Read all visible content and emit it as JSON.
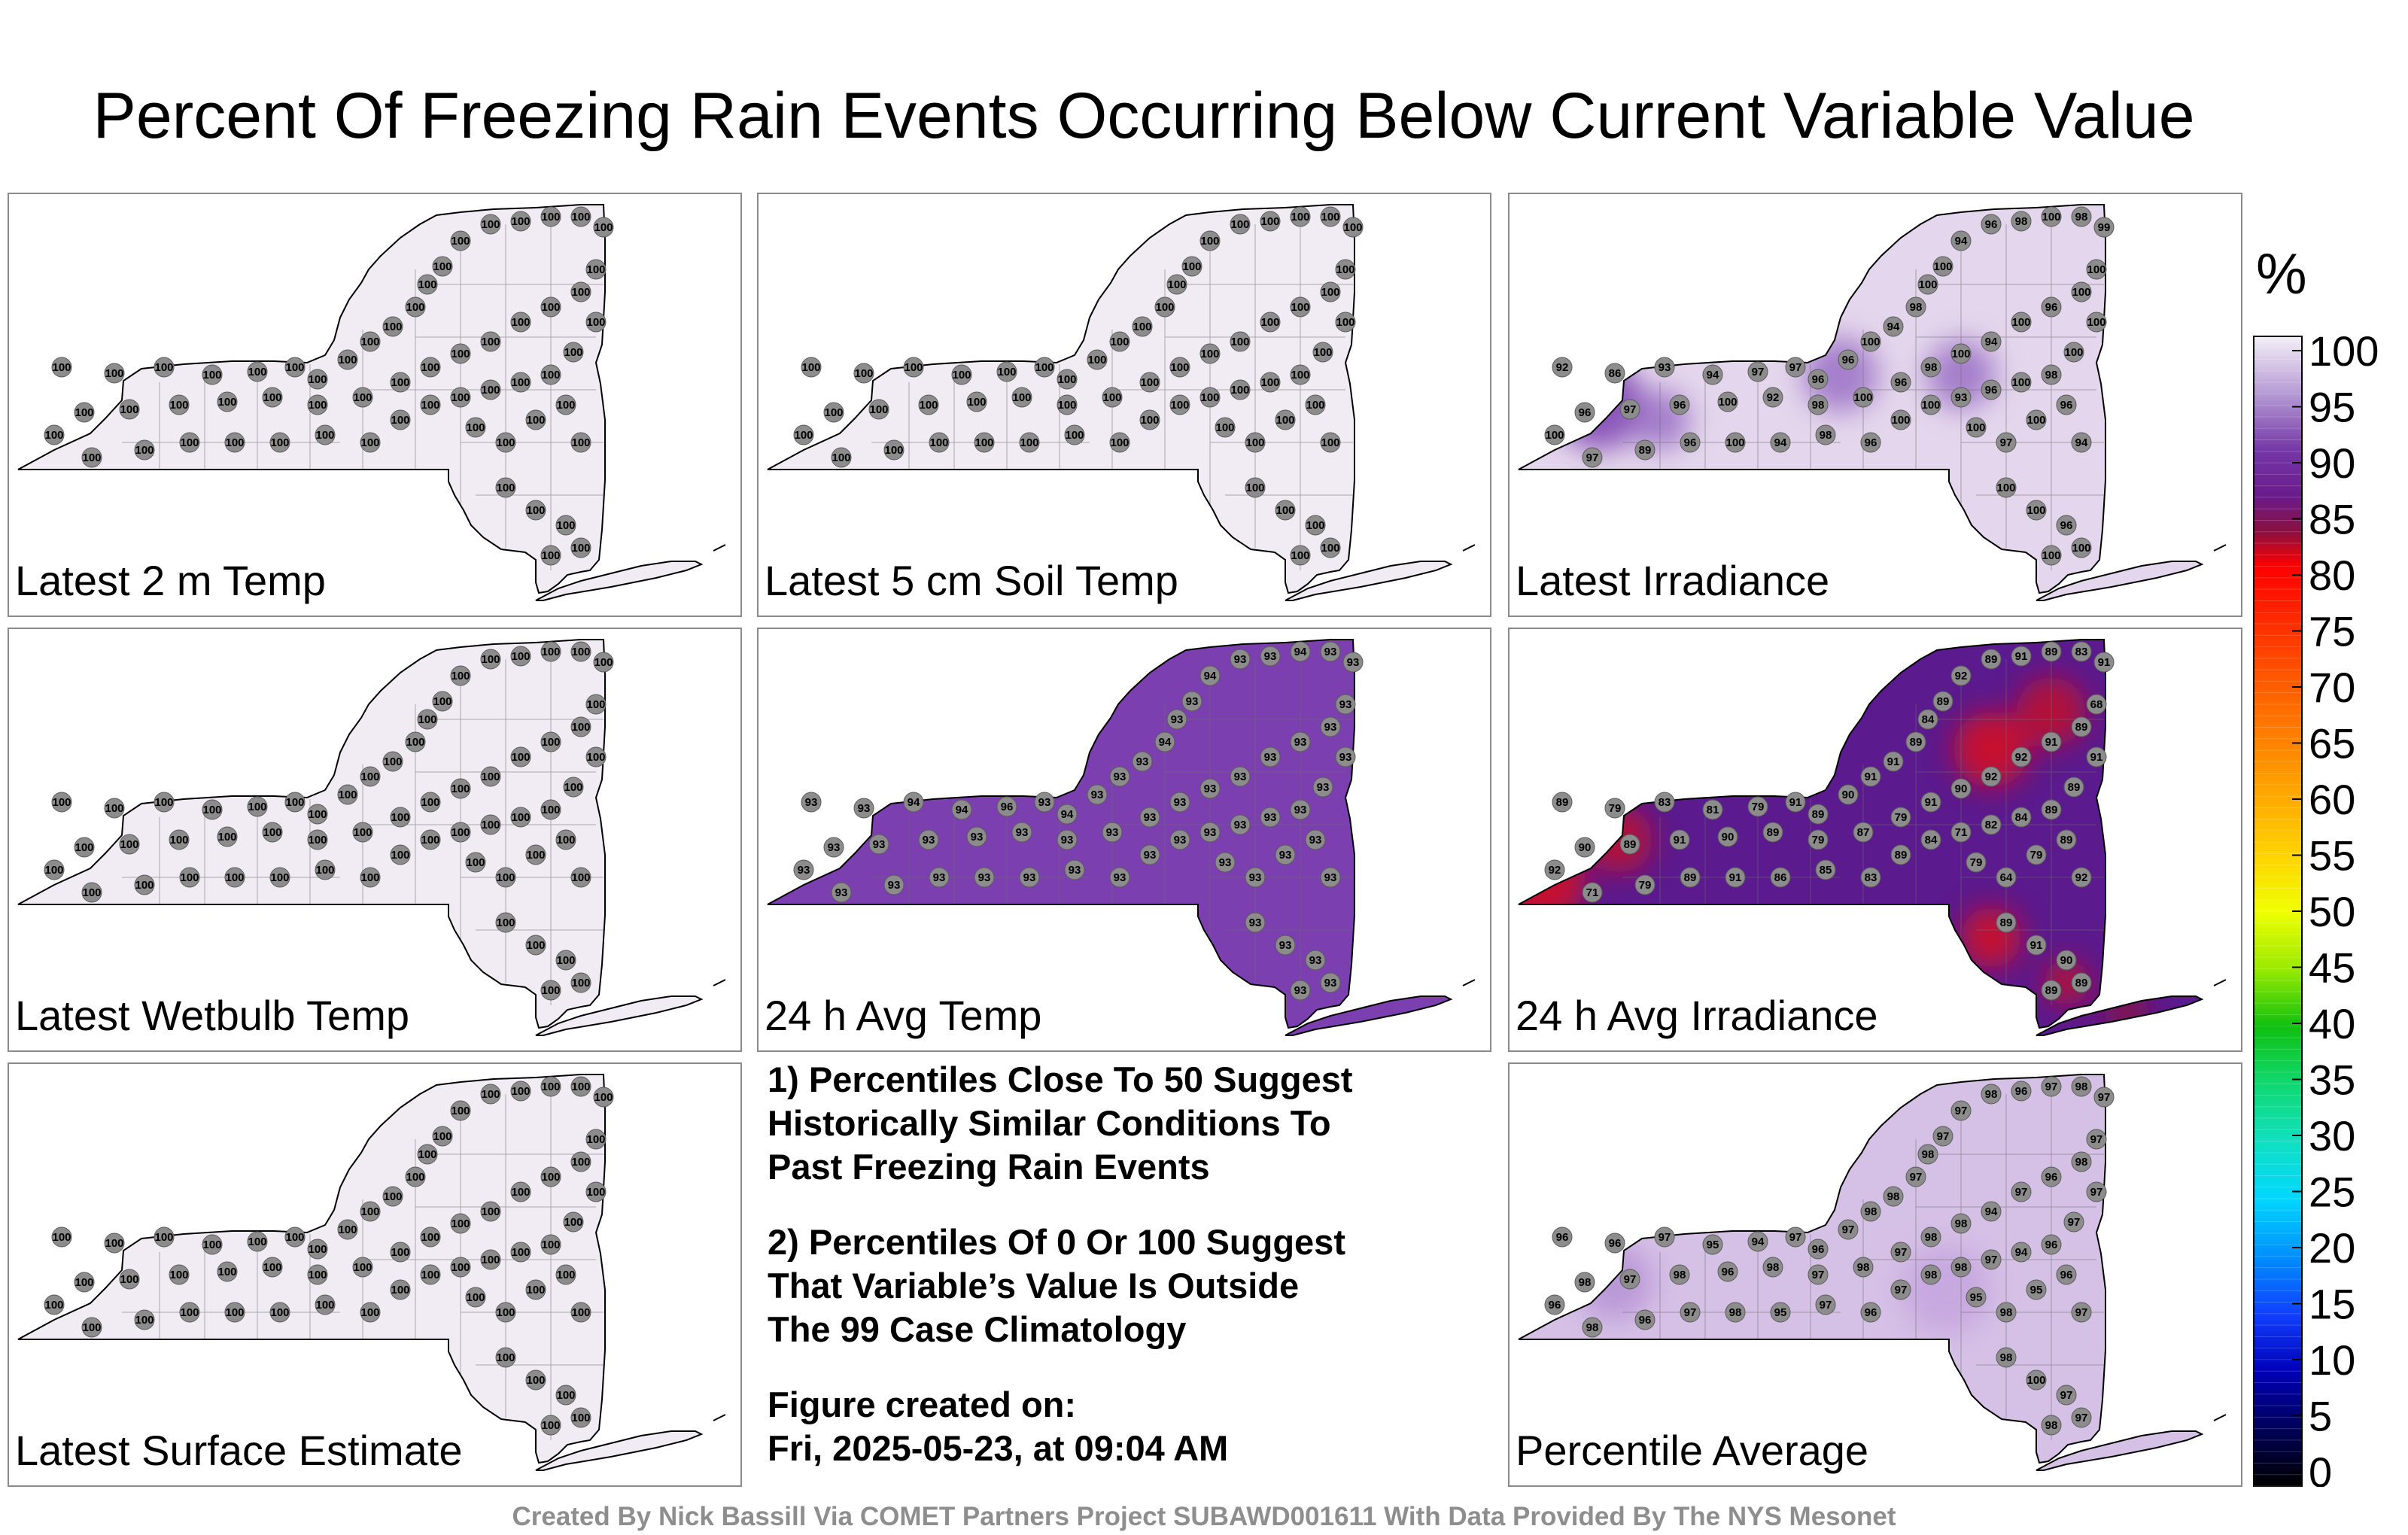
{
  "title": "Percent Of Freezing Rain Events Occurring Below Current Variable Value",
  "colors": {
    "land_white": "#f1ecf4",
    "land_light": "#e4d6ec",
    "land_mid": "#c7a9dc",
    "land_purple": "#7b3fb0",
    "land_deep": "#5b1a8e",
    "hot_red": "#d9121c",
    "station_fill": "#8c8c8c",
    "panel_border": "#8a8a8a",
    "footer_gray": "#8e8e8e"
  },
  "panels": [
    {
      "id": "latest-2m-temp",
      "label": "Latest 2 m Temp",
      "fill": "#f1ecf4",
      "stations": [
        "100",
        "100",
        "100",
        "100",
        "100",
        "100",
        "100",
        "100",
        "100",
        "100",
        "100",
        "100",
        "100",
        "100",
        "100",
        "100",
        "100",
        "100",
        "100",
        "100",
        "100",
        "100",
        "100",
        "100",
        "100",
        "100",
        "100",
        "100",
        "100",
        "100",
        "100",
        "100",
        "100",
        "100",
        "100",
        "100",
        "100",
        "100",
        "100",
        "100",
        "100",
        "100",
        "100",
        "100",
        "100",
        "100",
        "100",
        "100",
        "100",
        "100",
        "100",
        "100",
        "100",
        "100",
        "100",
        "100",
        "100",
        "100",
        "100",
        "100"
      ]
    },
    {
      "id": "latest-5cm-soil-temp",
      "label": "Latest 5 cm Soil Temp",
      "fill": "#f1ecf4",
      "stations": [
        "100",
        "100",
        "100",
        "100",
        "100",
        "100",
        "100",
        "100",
        "100",
        "100",
        "100",
        "100",
        "100",
        "100",
        "100",
        "100",
        "100",
        "100",
        "100",
        "100",
        "100",
        "100",
        "100",
        "100",
        "100",
        "100",
        "100",
        "100",
        "100",
        "100",
        "100",
        "100",
        "100",
        "100",
        "100",
        "100",
        "100",
        "100",
        "100",
        "100",
        "100",
        "100",
        "100",
        "100",
        "100",
        "100",
        "100",
        "100",
        "100",
        "100",
        "100",
        "100",
        "100",
        "100",
        "100",
        "100",
        "100",
        "100",
        "100",
        "100"
      ]
    },
    {
      "id": "latest-irradiance",
      "label": "Latest Irradiance",
      "fill": "#e4d6ec",
      "stations": [
        "92",
        "86",
        "93",
        "94",
        "97",
        "97",
        "96",
        "96",
        "100",
        "94",
        "98",
        "100",
        "100",
        "94",
        "96",
        "98",
        "100",
        "98",
        "99",
        "96",
        "100",
        "97",
        "96",
        "100",
        "92",
        "98",
        "100",
        "96",
        "98",
        "100",
        "94",
        "100",
        "96",
        "100",
        "100",
        "97",
        "89",
        "96",
        "100",
        "94",
        "98",
        "96",
        "100",
        "100",
        "93",
        "96",
        "100",
        "98",
        "100",
        "100",
        "100",
        "97",
        "100",
        "96",
        "94",
        "100",
        "100",
        "96",
        "100",
        "100"
      ]
    },
    {
      "id": "latest-wetbulb-temp",
      "label": "Latest Wetbulb Temp",
      "fill": "#f1ecf4",
      "stations": [
        "100",
        "100",
        "100",
        "100",
        "100",
        "100",
        "100",
        "100",
        "100",
        "100",
        "100",
        "100",
        "100",
        "100",
        "100",
        "100",
        "100",
        "100",
        "100",
        "100",
        "100",
        "100",
        "100",
        "100",
        "100",
        "100",
        "100",
        "100",
        "100",
        "100",
        "100",
        "100",
        "100",
        "100",
        "100",
        "100",
        "100",
        "100",
        "100",
        "100",
        "100",
        "100",
        "100",
        "100",
        "100",
        "100",
        "100",
        "100",
        "100",
        "100",
        "100",
        "100",
        "100",
        "100",
        "100",
        "100",
        "100",
        "100",
        "100",
        "100"
      ]
    },
    {
      "id": "24h-avg-temp",
      "label": "24 h Avg Temp",
      "fill": "#7b3fb0",
      "stations": [
        "93",
        "93",
        "94",
        "94",
        "96",
        "93",
        "94",
        "93",
        "93",
        "93",
        "94",
        "93",
        "93",
        "94",
        "93",
        "93",
        "94",
        "93",
        "93",
        "93",
        "93",
        "93",
        "93",
        "93",
        "93",
        "93",
        "93",
        "93",
        "93",
        "93",
        "93",
        "93",
        "93",
        "93",
        "93",
        "93",
        "93",
        "93",
        "93",
        "93",
        "93",
        "93",
        "93",
        "93",
        "93",
        "93",
        "93",
        "93",
        "93",
        "93",
        "93",
        "93",
        "93",
        "93",
        "93",
        "93",
        "93",
        "93",
        "93",
        "93"
      ]
    },
    {
      "id": "24h-avg-irradiance",
      "label": "24 h Avg Irradiance",
      "fill": "#5b1a8e",
      "stations": [
        "89",
        "79",
        "83",
        "81",
        "79",
        "91",
        "89",
        "90",
        "91",
        "91",
        "89",
        "84",
        "89",
        "92",
        "89",
        "91",
        "89",
        "83",
        "91",
        "90",
        "92",
        "89",
        "91",
        "90",
        "89",
        "79",
        "87",
        "79",
        "91",
        "90",
        "92",
        "92",
        "91",
        "89",
        "68",
        "71",
        "79",
        "89",
        "91",
        "86",
        "85",
        "83",
        "89",
        "84",
        "71",
        "82",
        "84",
        "89",
        "89",
        "91",
        "79",
        "64",
        "79",
        "89",
        "92",
        "89",
        "91",
        "90",
        "89",
        "89"
      ]
    },
    {
      "id": "latest-surface-estimate",
      "label": "Latest Surface Estimate",
      "fill": "#f1ecf4",
      "stations": [
        "100",
        "100",
        "100",
        "100",
        "100",
        "100",
        "100",
        "100",
        "100",
        "100",
        "100",
        "100",
        "100",
        "100",
        "100",
        "100",
        "100",
        "100",
        "100",
        "100",
        "100",
        "100",
        "100",
        "100",
        "100",
        "100",
        "100",
        "100",
        "100",
        "100",
        "100",
        "100",
        "100",
        "100",
        "100",
        "100",
        "100",
        "100",
        "100",
        "100",
        "100",
        "100",
        "100",
        "100",
        "100",
        "100",
        "100",
        "100",
        "100",
        "100",
        "100",
        "100",
        "100",
        "100",
        "100",
        "100",
        "100",
        "100",
        "100",
        "100"
      ]
    },
    {
      "id": "percentile-average",
      "label": "Percentile Average",
      "fill": "#d6c1e6",
      "stations": [
        "96",
        "96",
        "97",
        "95",
        "94",
        "97",
        "96",
        "97",
        "98",
        "98",
        "97",
        "98",
        "97",
        "97",
        "98",
        "96",
        "97",
        "98",
        "97",
        "98",
        "96",
        "97",
        "98",
        "96",
        "98",
        "97",
        "98",
        "97",
        "98",
        "98",
        "94",
        "97",
        "96",
        "98",
        "97",
        "98",
        "96",
        "97",
        "98",
        "95",
        "97",
        "96",
        "97",
        "98",
        "98",
        "97",
        "94",
        "96",
        "97",
        "97",
        "95",
        "98",
        "95",
        "96",
        "97",
        "98",
        "100",
        "97",
        "98",
        "97"
      ]
    }
  ],
  "notes": [
    {
      "lines": [
        "1) Percentiles Close To 50 Suggest",
        "Historically Similar Conditions To",
        "Past Freezing Rain Events"
      ]
    },
    {
      "lines": [
        "2) Percentiles Of 0 Or 100 Suggest",
        "That Variable’s Value Is Outside",
        "The 99 Case Climatology"
      ]
    },
    {
      "lines": [
        "Figure created on:",
        "Fri, 2025-05-23, at 09:04 AM"
      ]
    }
  ],
  "colorbar": {
    "unit": "%",
    "ticks": [
      "100",
      "95",
      "90",
      "85",
      "80",
      "75",
      "70",
      "65",
      "60",
      "55",
      "50",
      "45",
      "40",
      "35",
      "30",
      "25",
      "20",
      "15",
      "10",
      "5",
      "0"
    ],
    "stops": [
      {
        "value": 100,
        "color": "#f4f0f7"
      },
      {
        "value": 95,
        "color": "#b59ad4"
      },
      {
        "value": 90,
        "color": "#7436a6"
      },
      {
        "value": 86,
        "color": "#6a1a8a"
      },
      {
        "value": 83,
        "color": "#8a1040"
      },
      {
        "value": 80,
        "color": "#ff0000"
      },
      {
        "value": 70,
        "color": "#ff5a00"
      },
      {
        "value": 63,
        "color": "#ff9000"
      },
      {
        "value": 55,
        "color": "#ffd200"
      },
      {
        "value": 50,
        "color": "#f0ff00"
      },
      {
        "value": 45,
        "color": "#9aea00"
      },
      {
        "value": 40,
        "color": "#10c010"
      },
      {
        "value": 35,
        "color": "#10d870"
      },
      {
        "value": 30,
        "color": "#10e0c0"
      },
      {
        "value": 25,
        "color": "#00d8ff"
      },
      {
        "value": 20,
        "color": "#0090ff"
      },
      {
        "value": 15,
        "color": "#1040ff"
      },
      {
        "value": 10,
        "color": "#0000b8"
      },
      {
        "value": 5,
        "color": "#00005a"
      },
      {
        "value": 0,
        "color": "#000000"
      }
    ]
  },
  "footer": "Created By Nick Bassill Via COMET Partners Project SUBAWD001611 With Data Provided By The NYS Mesonet"
}
